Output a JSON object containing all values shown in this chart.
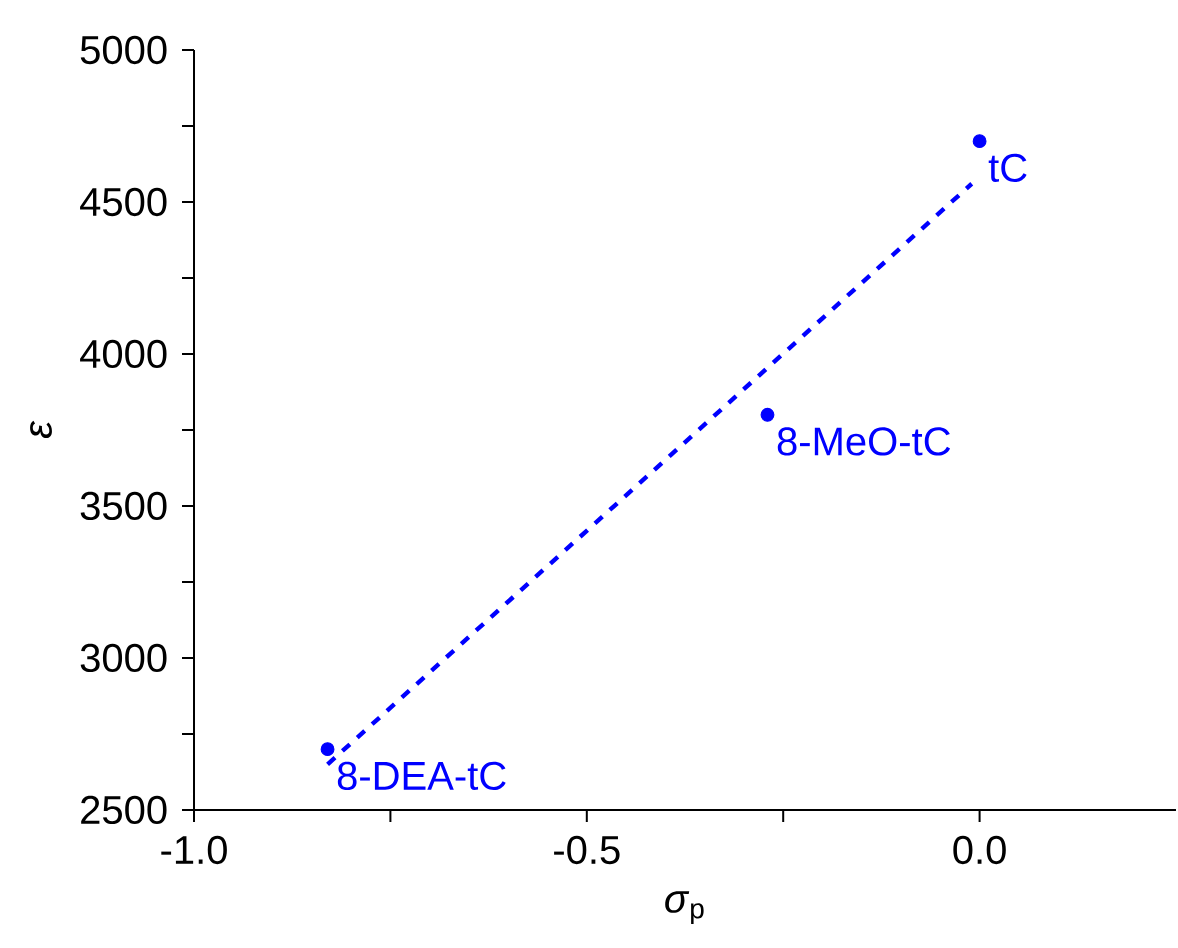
{
  "chart_data": {
    "type": "scatter",
    "xlabel": "*σ*$_{p}$",
    "ylabel": "ε",
    "xlim": [
      -1.0,
      0.25
    ],
    "ylim": [
      2500,
      5000
    ],
    "xticks": [
      {
        "value": -1.0,
        "label": "-1.0"
      },
      {
        "value": -0.75,
        "label": null
      },
      {
        "value": -0.5,
        "label": "-0.5"
      },
      {
        "value": -0.25,
        "label": null
      },
      {
        "value": 0.0,
        "label": "0.0"
      }
    ],
    "yticks": [
      2500,
      {
        "value": 2750,
        "label": null
      },
      3000,
      {
        "value": 3250,
        "label": null
      },
      3500,
      {
        "value": 3750,
        "label": null
      },
      4000,
      {
        "value": 4250,
        "label": null
      },
      4500,
      {
        "value": 4750,
        "label": null
      },
      5000
    ],
    "series": [
      {
        "color": "#0000ff",
        "marker": "circle",
        "x": [
          -0.83,
          -0.27,
          0.0
        ],
        "values": [
          2700,
          3800,
          4700
        ]
      },
      {
        "type": "line",
        "color": "#0000ff",
        "marker": "none",
        "line_style": "dashed",
        "x": [
          -0.83,
          -0.01
        ],
        "values": [
          2650,
          4560
        ]
      }
    ],
    "annotations": [
      {
        "text": "8-DEA-tC",
        "x": -0.83,
        "y": 2700
      },
      {
        "text": "8-MeO-tC",
        "x": -0.27,
        "y": 3800
      },
      {
        "text": "tC",
        "x": 0.0,
        "y": 4700
      }
    ]
  }
}
